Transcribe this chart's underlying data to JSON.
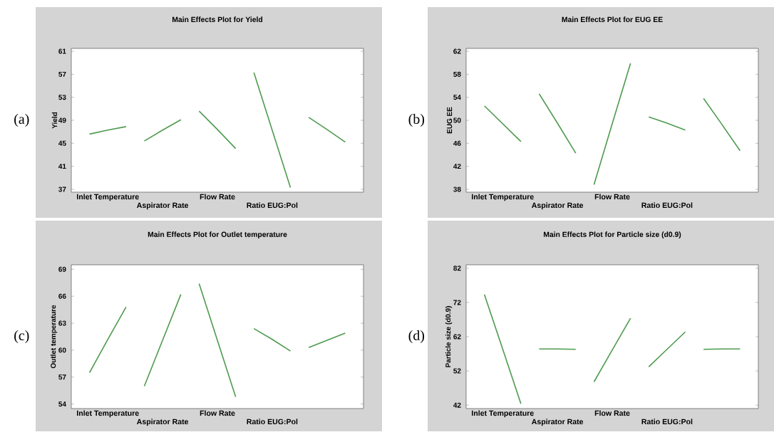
{
  "chart_data": [
    {
      "type": "line",
      "title": "Main Effects Plot for Yield",
      "ylabel": "Yield",
      "annotations": [
        "(a)"
      ],
      "ylim": [
        36.5,
        61.5
      ],
      "yticks": [
        37,
        41,
        45,
        49,
        53,
        57,
        61
      ],
      "categories": [
        null,
        "Inlet Temperature",
        null,
        null,
        "Aspirator Rate",
        null,
        null,
        "Flow Rate",
        null,
        null,
        "Ratio EUG:Pol",
        null,
        null,
        null,
        null
      ],
      "series": [
        {
          "values": [
            46.6,
            47.3,
            47.9,
            null,
            null,
            null,
            null,
            null,
            null,
            null,
            null,
            null,
            null,
            null,
            null
          ],
          "color": "#4e9a4e"
        },
        {
          "values": [
            null,
            null,
            null,
            45.4,
            47.3,
            49.1,
            null,
            null,
            null,
            null,
            null,
            null,
            null,
            null,
            null
          ],
          "color": "#4e9a4e"
        },
        {
          "values": [
            null,
            null,
            null,
            null,
            null,
            null,
            50.6,
            47.4,
            44.1,
            null,
            null,
            null,
            null,
            null,
            null
          ],
          "color": "#4e9a4e"
        },
        {
          "values": [
            null,
            null,
            null,
            null,
            null,
            null,
            null,
            null,
            null,
            57.3,
            47.3,
            37.3,
            null,
            null,
            null
          ],
          "color": "#4e9a4e"
        },
        {
          "values": [
            null,
            null,
            null,
            null,
            null,
            null,
            null,
            null,
            null,
            null,
            null,
            null,
            49.5,
            47.4,
            45.2
          ],
          "color": "#4e9a4e"
        }
      ]
    },
    {
      "type": "line",
      "title": "Main Effects Plot for EUG EE",
      "ylabel": "EUG EE",
      "annotations": [
        "(b)"
      ],
      "ylim": [
        37.5,
        62.5
      ],
      "yticks": [
        38,
        42,
        46,
        50,
        54,
        58,
        62
      ],
      "categories": [
        null,
        "Inlet Temperature",
        null,
        null,
        "Aspirator Rate",
        null,
        null,
        "Flow Rate",
        null,
        null,
        "Ratio EUG:Pol",
        null,
        null,
        null,
        null
      ],
      "series": [
        {
          "values": [
            52.5,
            49.4,
            46.3,
            null,
            null,
            null,
            null,
            null,
            null,
            null,
            null,
            null,
            null,
            null,
            null
          ],
          "color": "#4e9a4e"
        },
        {
          "values": [
            null,
            null,
            null,
            54.6,
            49.5,
            44.3,
            null,
            null,
            null,
            null,
            null,
            null,
            null,
            null,
            null
          ],
          "color": "#4e9a4e"
        },
        {
          "values": [
            null,
            null,
            null,
            null,
            null,
            null,
            38.8,
            49.4,
            59.9,
            null,
            null,
            null,
            null,
            null,
            null
          ],
          "color": "#4e9a4e"
        },
        {
          "values": [
            null,
            null,
            null,
            null,
            null,
            null,
            null,
            null,
            null,
            50.6,
            49.5,
            48.3,
            null,
            null,
            null
          ],
          "color": "#4e9a4e"
        },
        {
          "values": [
            null,
            null,
            null,
            null,
            null,
            null,
            null,
            null,
            null,
            null,
            null,
            null,
            53.8,
            49.3,
            44.7
          ],
          "color": "#4e9a4e"
        }
      ]
    },
    {
      "type": "line",
      "title": "Main Effects Plot for Outlet temperature",
      "ylabel": "Outlet temperature",
      "annotations": [
        "(c)"
      ],
      "ylim": [
        53.5,
        69.5
      ],
      "yticks": [
        54,
        57,
        60,
        63,
        66,
        69
      ],
      "categories": [
        null,
        "Inlet Temperature",
        null,
        null,
        "Aspirator Rate",
        null,
        null,
        "Flow Rate",
        null,
        null,
        "Ratio EUG:Pol",
        null,
        null,
        null,
        null
      ],
      "series": [
        {
          "values": [
            57.5,
            61.2,
            64.8,
            null,
            null,
            null,
            null,
            null,
            null,
            null,
            null,
            null,
            null,
            null,
            null
          ],
          "color": "#4e9a4e"
        },
        {
          "values": [
            null,
            null,
            null,
            56.0,
            61.1,
            66.2,
            null,
            null,
            null,
            null,
            null,
            null,
            null,
            null,
            null
          ],
          "color": "#4e9a4e"
        },
        {
          "values": [
            null,
            null,
            null,
            null,
            null,
            null,
            67.4,
            61.1,
            54.8,
            null,
            null,
            null,
            null,
            null,
            null
          ],
          "color": "#4e9a4e"
        },
        {
          "values": [
            null,
            null,
            null,
            null,
            null,
            null,
            null,
            null,
            null,
            62.4,
            61.2,
            59.9,
            null,
            null,
            null
          ],
          "color": "#4e9a4e"
        },
        {
          "values": [
            null,
            null,
            null,
            null,
            null,
            null,
            null,
            null,
            null,
            null,
            null,
            null,
            60.3,
            61.1,
            61.9
          ],
          "color": "#4e9a4e"
        }
      ]
    },
    {
      "type": "line",
      "title": "Main Effects Plot for Particle size (d0.9)",
      "ylabel": "Particle size (d0.9)",
      "annotations": [
        "(d)"
      ],
      "ylim": [
        41,
        83
      ],
      "yticks": [
        42,
        52,
        62,
        72,
        82
      ],
      "categories": [
        null,
        "Inlet Temperature",
        null,
        null,
        "Aspirator Rate",
        null,
        null,
        "Flow Rate",
        null,
        null,
        "Ratio EUG:Pol",
        null,
        null,
        null,
        null
      ],
      "series": [
        {
          "values": [
            74.3,
            58.4,
            42.4,
            null,
            null,
            null,
            null,
            null,
            null,
            null,
            null,
            null,
            null,
            null,
            null
          ],
          "color": "#4e9a4e"
        },
        {
          "values": [
            null,
            null,
            null,
            58.4,
            58.4,
            58.3,
            null,
            null,
            null,
            null,
            null,
            null,
            null,
            null,
            null
          ],
          "color": "#4e9a4e"
        },
        {
          "values": [
            null,
            null,
            null,
            null,
            null,
            null,
            48.8,
            58.1,
            67.4,
            null,
            null,
            null,
            null,
            null,
            null
          ],
          "color": "#4e9a4e"
        },
        {
          "values": [
            null,
            null,
            null,
            null,
            null,
            null,
            null,
            null,
            null,
            53.2,
            58.3,
            63.4,
            null,
            null,
            null
          ],
          "color": "#4e9a4e"
        },
        {
          "values": [
            null,
            null,
            null,
            null,
            null,
            null,
            null,
            null,
            null,
            null,
            null,
            null,
            58.3,
            58.4,
            58.4
          ],
          "color": "#4e9a4e"
        }
      ]
    }
  ]
}
